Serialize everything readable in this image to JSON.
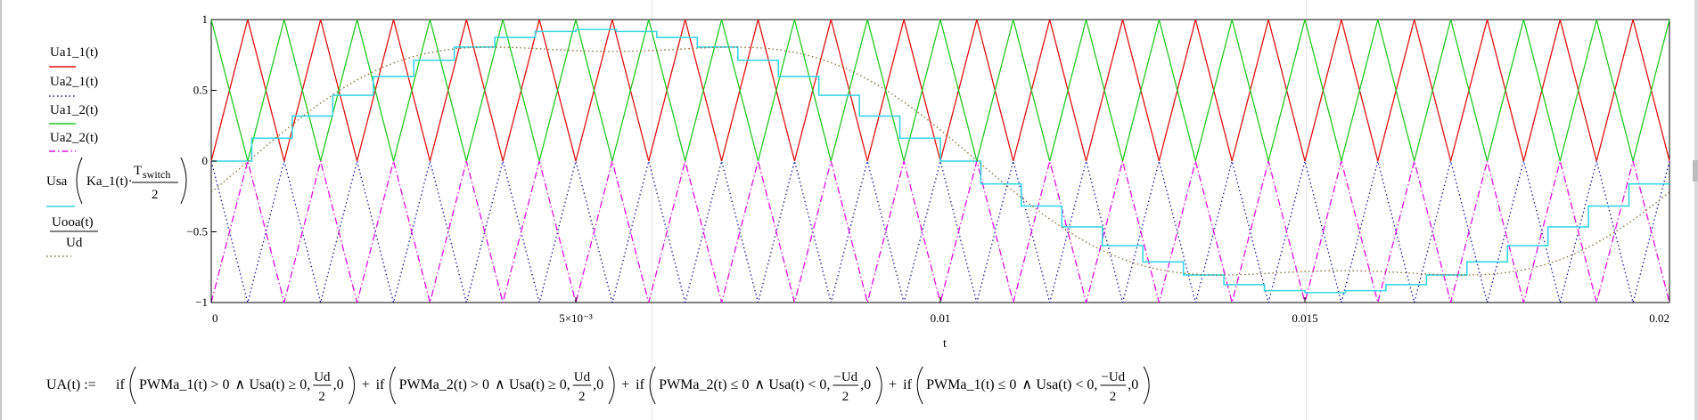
{
  "chart_data": {
    "type": "line",
    "x_start": 0,
    "x_end": 0.02,
    "ylim": [
      -1,
      1
    ],
    "xlabel": "t",
    "x_ticks": [
      {
        "value": 0,
        "label": "0"
      },
      {
        "value": 0.005,
        "label": "5×10⁻³"
      },
      {
        "value": 0.01,
        "label": "0.01"
      },
      {
        "value": 0.015,
        "label": "0.015"
      },
      {
        "value": 0.02,
        "label": "0.02"
      }
    ],
    "y_ticks": [
      {
        "value": 1,
        "label": "1"
      },
      {
        "value": 0.5,
        "label": "0.5"
      },
      {
        "value": 0,
        "label": "0"
      },
      {
        "value": -0.5,
        "label": "−0.5"
      },
      {
        "value": -1,
        "label": "−1"
      }
    ],
    "grid": false,
    "legend_position": "left",
    "carrier_periods": 20,
    "modulation_amplitude": 0.93,
    "step_count": 36,
    "series": [
      {
        "name": "Ua1_1(t)",
        "kind": "triangle",
        "range": [
          0,
          1
        ],
        "phase": "rising",
        "color": "#e01010",
        "style": "solid"
      },
      {
        "name": "Ua2_1(t)",
        "kind": "triangle",
        "range": [
          -1,
          0
        ],
        "phase": "falling",
        "color": "#1a1aa6",
        "style": "dotted"
      },
      {
        "name": "Ua1_2(t)",
        "kind": "triangle",
        "range": [
          0,
          1
        ],
        "phase": "falling",
        "color": "#22c822",
        "style": "solid"
      },
      {
        "name": "Ua2_2(t)",
        "kind": "triangle",
        "range": [
          -1,
          0
        ],
        "phase": "rising",
        "color": "#e010e0",
        "style": "dashdot"
      },
      {
        "kind": "staircase",
        "color": "#38d6e6",
        "style": "solid"
      },
      {
        "kind": "reference",
        "color": "#8a6a30",
        "style": "dotted"
      }
    ],
    "legend": {
      "ua1_1": "Ua1_1(t)",
      "ua2_1": "Ua2_1(t)",
      "ua1_2": "Ua1_2(t)",
      "ua2_2": "Ua2_2(t)",
      "usa_name": "Usa",
      "usa_arg": "Ka_1(t)·",
      "usa_num": "T",
      "usa_sub": "switch",
      "usa_den": "2",
      "uooa_num": "Uooa(t)",
      "uooa_den": "Ud"
    }
  },
  "formula": {
    "lhs": "UA(t) :=",
    "if_word": "if",
    "plus": "+",
    "and_sym": "∧",
    "terms": [
      {
        "cond1": "PWMa_1(t) > 0",
        "cond2": "Usa(t) ≥ 0,",
        "num": "Ud",
        "den": "2",
        "tail": ",0"
      },
      {
        "cond1": "PWMa_2(t) > 0",
        "cond2": "Usa(t) ≥ 0,",
        "num": "Ud",
        "den": "2",
        "tail": ",0"
      },
      {
        "cond1": "PWMa_2(t) ≤ 0",
        "cond2": "Usa(t) < 0,",
        "num": "−Ud",
        "den": "2",
        "tail": ",0"
      },
      {
        "cond1": "PWMa_1(t) ≤ 0",
        "cond2": "Usa(t) < 0,",
        "num": "−Ud",
        "den": "2",
        "tail": ",0"
      }
    ]
  }
}
